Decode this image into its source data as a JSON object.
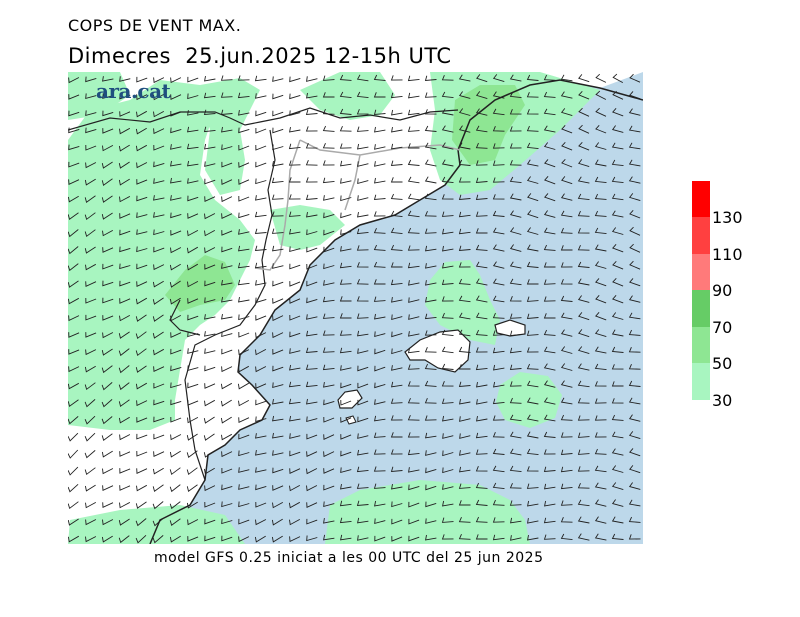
{
  "header": {
    "title": "COPS DE VENT MAX.",
    "date_line": "Dimecres  25.jun.2025 12-15h UTC"
  },
  "logo": {
    "text": "ara.cat"
  },
  "footer": {
    "model_line": "model GFS 0.25 iniciat a les 00 UTC del 25 jun 2025"
  },
  "legend": {
    "levels": [
      {
        "label": "30",
        "color": "#a8f5c0"
      },
      {
        "label": "50",
        "color": "#8ee693"
      },
      {
        "label": "70",
        "color": "#66cc66"
      },
      {
        "label": "90",
        "color": "#ff7a7a"
      },
      {
        "label": "110",
        "color": "#ff4040"
      },
      {
        "label": "130",
        "color": "#ff0000"
      }
    ]
  },
  "colors": {
    "sea": "#bdd8ea",
    "land": "#ffffff",
    "gust_30_50": "#a8f5c0",
    "gust_50_70": "#8ee693",
    "coast": "#222222",
    "border": "#aaaaaa"
  }
}
